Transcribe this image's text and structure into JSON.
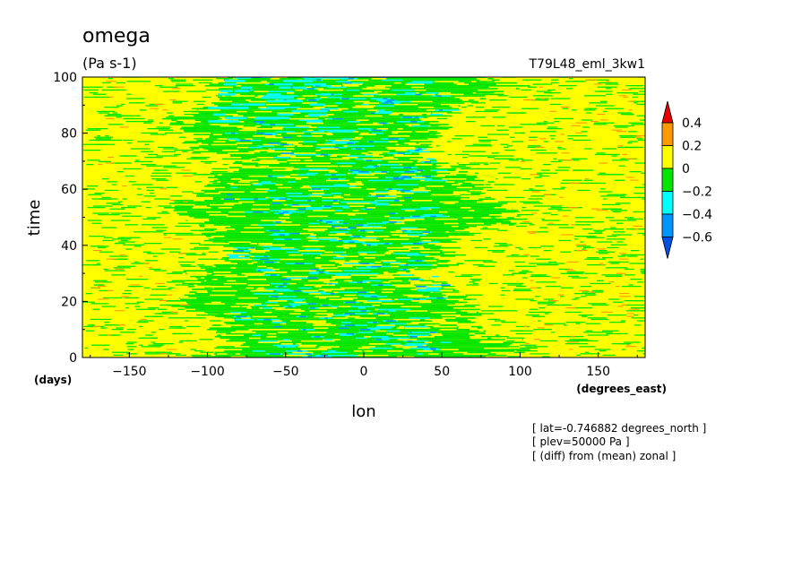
{
  "header": {
    "title": "omega",
    "units": "(Pa s-1)",
    "run_name": "T79L48_eml_3kw1"
  },
  "notes": [
    "[ lat=-0.746882 degrees_north ]",
    "[ plev=50000 Pa ]",
    "[ (diff) from (mean) zonal ]"
  ],
  "chart_data": {
    "type": "heatmap",
    "xlabel": "lon",
    "x_units": "(degrees_east)",
    "ylabel": "time",
    "y_units": "(days)",
    "xlim": [
      -180,
      180
    ],
    "ylim": [
      0,
      100
    ],
    "x_ticks": [
      -150,
      -100,
      -50,
      0,
      50,
      100,
      150
    ],
    "y_ticks": [
      0,
      20,
      40,
      60,
      80,
      100
    ],
    "colorbar": {
      "levels": [
        0.4,
        0.2,
        0,
        -0.2,
        -0.4,
        -0.6
      ],
      "colors": [
        "#e60000",
        "#ff9900",
        "#ffff00",
        "#00e600",
        "#00ffff",
        "#0096ff",
        "#0050e6"
      ],
      "extend": "both"
    },
    "description_of_field": "Mostly 0 to 0.2 (yellow) outside lon -110..90; band of -0.2..0 (green) between about -110 and 90 with patches of -0.4..-0.2 (cyan) and below -0.4 (blue) concentrated near lon -80..40; sparse 0.2..0.4 (orange) streaks east of 100"
  }
}
